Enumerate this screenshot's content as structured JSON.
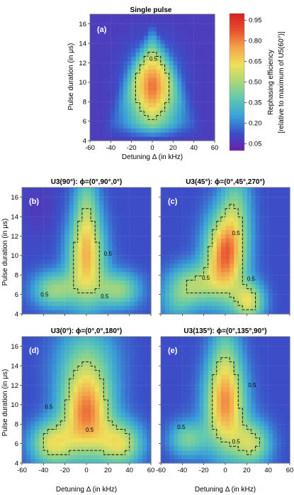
{
  "chart_data": [
    {
      "type": "heatmap",
      "panel_label": "(a)",
      "title": "Single pulse",
      "xlabel": "Detuning Δ (in kHz)",
      "ylabel": "Pulse duration (in μs)",
      "xlim": [
        -60,
        60
      ],
      "ylim": [
        4,
        17
      ],
      "xticks": [
        "-60",
        "-40",
        "-20",
        "0",
        "20",
        "40",
        "60"
      ],
      "yticks": [
        "4",
        "6",
        "8",
        "10",
        "12",
        "14",
        "16"
      ],
      "contour_labels": [
        "0.5"
      ],
      "peak": {
        "x": 0,
        "y": 9.5,
        "value": 0.8
      }
    },
    {
      "type": "heatmap",
      "panel_label": "(b)",
      "title": "U3(90°): ϕ=(0°,90°,0°)",
      "xlabel": "",
      "ylabel": "Pulse duration (in μs)",
      "xlim": [
        -60,
        60
      ],
      "ylim": [
        4,
        17
      ],
      "xticks": [],
      "yticks": [
        "4",
        "6",
        "8",
        "10",
        "12",
        "14",
        "16"
      ],
      "contour_labels": [
        "0.5",
        "0.5",
        "0.5"
      ],
      "peak": {
        "x": 0,
        "y": 10,
        "value": 0.85
      }
    },
    {
      "type": "heatmap",
      "panel_label": "(c)",
      "title": "U3(45°): ϕ=(0°,45°,270°)",
      "xlabel": "",
      "ylabel": "",
      "xlim": [
        -60,
        60
      ],
      "ylim": [
        4,
        17
      ],
      "xticks": [],
      "yticks": [],
      "contour_labels": [
        "0.5",
        "0.5",
        "0.5"
      ],
      "peak": {
        "x": 0,
        "y": 9.8,
        "value": 0.95
      }
    },
    {
      "type": "heatmap",
      "panel_label": "(d)",
      "title": "U3(0°): ϕ=(0°,0°,180°)",
      "xlabel": "Detuning Δ (in kHz)",
      "ylabel": "Pulse duration (in μs)",
      "xlim": [
        -60,
        60
      ],
      "ylim": [
        4,
        17
      ],
      "xticks": [
        "-60",
        "-40",
        "-20",
        "0",
        "20",
        "40",
        "60"
      ],
      "yticks": [
        "4",
        "6",
        "8",
        "10",
        "12",
        "14",
        "16"
      ],
      "contour_labels": [
        "0.5",
        "0.5"
      ],
      "peak": {
        "x": 0,
        "y": 9.3,
        "value": 0.9
      }
    },
    {
      "type": "heatmap",
      "panel_label": "(e)",
      "title": "U3(135°): ϕ=(0°,135°,90°)",
      "xlabel": "Detuning Δ (in kHz)",
      "ylabel": "",
      "xlim": [
        -60,
        60
      ],
      "ylim": [
        4,
        17
      ],
      "xticks": [
        "-60",
        "-40",
        "-20",
        "0",
        "20",
        "40",
        "60"
      ],
      "yticks": [],
      "contour_labels": [
        "0.5",
        "0.5",
        "0.5"
      ],
      "peak": {
        "x": 0,
        "y": 9.8,
        "value": 0.9
      }
    }
  ],
  "colorbar": {
    "label_line1": "Rephasing efficiency",
    "label_line2": "[relative to maximum of U5(60°)]",
    "ticks": [
      "0.95",
      "0.80",
      "0.65",
      "0.50",
      "0.35",
      "0.20",
      "0.05"
    ],
    "tick_values": [
      0.95,
      0.8,
      0.65,
      0.5,
      0.35,
      0.2,
      0.05
    ],
    "colors": [
      "#6a1fa6",
      "#3b4fc8",
      "#3aa0d8",
      "#5ec8b0",
      "#a8d67a",
      "#efe05a",
      "#f3a64a",
      "#e8502e",
      "#d42020"
    ]
  }
}
